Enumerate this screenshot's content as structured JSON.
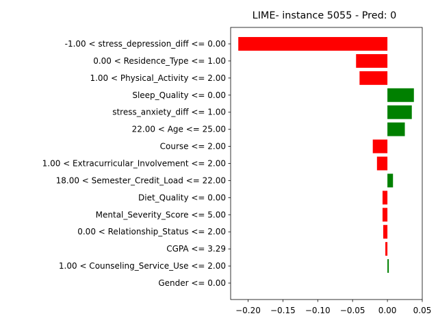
{
  "chart_data": {
    "type": "bar",
    "orientation": "horizontal",
    "title": "LIME- instance 5055 - Pred: 0",
    "xlabel": "",
    "ylabel": "",
    "xlim": [
      -0.225,
      0.05
    ],
    "xticks": [
      -0.2,
      -0.15,
      -0.1,
      -0.05,
      0.0,
      0.05
    ],
    "xtick_labels": [
      "−0.20",
      "−0.15",
      "−0.10",
      "−0.05",
      "0.00",
      "0.05"
    ],
    "grid": false,
    "positive_color": "#008000",
    "negative_color": "#ff0000",
    "categories": [
      "-1.00 < stress_depression_diff <= 0.00",
      "0.00 < Residence_Type <= 1.00",
      "1.00 < Physical_Activity <= 2.00",
      "Sleep_Quality <= 0.00",
      "stress_anxiety_diff <= 1.00",
      "22.00 < Age <= 25.00",
      "Course <= 2.00",
      "1.00 < Extracurricular_Involvement <= 2.00",
      "18.00 < Semester_Credit_Load <= 22.00",
      "Diet_Quality <= 0.00",
      "Mental_Severity_Score <= 5.00",
      "0.00 < Relationship_Status <= 2.00",
      "CGPA <= 3.29",
      "1.00 < Counseling_Service_Use <= 2.00",
      "Gender <= 0.00"
    ],
    "values": [
      -0.214,
      -0.045,
      -0.04,
      0.038,
      0.035,
      0.025,
      -0.021,
      -0.015,
      0.008,
      -0.007,
      -0.007,
      -0.006,
      -0.003,
      0.002,
      0.0
    ]
  }
}
